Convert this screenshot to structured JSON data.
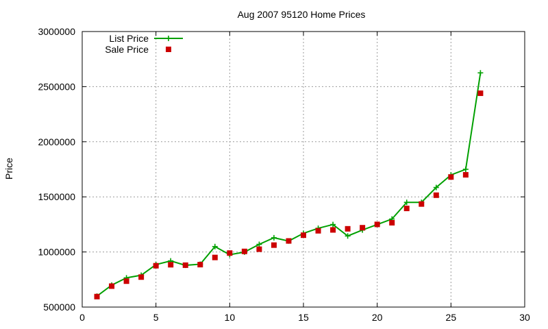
{
  "chart_data": {
    "type": "line",
    "title": "Aug 2007 95120 Home Prices",
    "xlabel": "",
    "ylabel": "Price",
    "xlim": [
      0,
      30
    ],
    "ylim": [
      500000,
      3000000
    ],
    "x_ticks": [
      0,
      5,
      10,
      15,
      20,
      25,
      30
    ],
    "y_ticks": [
      500000,
      1000000,
      1500000,
      2000000,
      2500000,
      3000000
    ],
    "x_tick_labels": [
      "0",
      "5",
      "10",
      "15",
      "20",
      "25",
      "30"
    ],
    "y_tick_labels": [
      "500000",
      "1000000",
      "1500000",
      "2000000",
      "2500000",
      "3000000"
    ],
    "grid": true,
    "legend_position": "top-left",
    "x": [
      1,
      2,
      3,
      4,
      5,
      6,
      7,
      8,
      9,
      10,
      11,
      12,
      13,
      14,
      15,
      16,
      17,
      18,
      19,
      20,
      21,
      22,
      23,
      24,
      25,
      26,
      27
    ],
    "series": [
      {
        "name": "List Price",
        "style": "line-with-plus-markers",
        "color": "#00a000",
        "values": [
          599000,
          699000,
          765000,
          789000,
          885000,
          919000,
          879000,
          889000,
          1049000,
          975000,
          999000,
          1069000,
          1129000,
          1099000,
          1169000,
          1215000,
          1249000,
          1145000,
          1199000,
          1249000,
          1299000,
          1450000,
          1450000,
          1585000,
          1699000,
          1750000,
          2625000
        ]
      },
      {
        "name": "Sale Price",
        "style": "square-markers",
        "color": "#cc0000",
        "values": [
          595000,
          690000,
          735000,
          772000,
          875000,
          884000,
          880000,
          885000,
          950000,
          990000,
          1005000,
          1025000,
          1062000,
          1100000,
          1152000,
          1192000,
          1200000,
          1210000,
          1220000,
          1250000,
          1265000,
          1395000,
          1435000,
          1515000,
          1680000,
          1700000,
          2440000
        ]
      }
    ]
  }
}
